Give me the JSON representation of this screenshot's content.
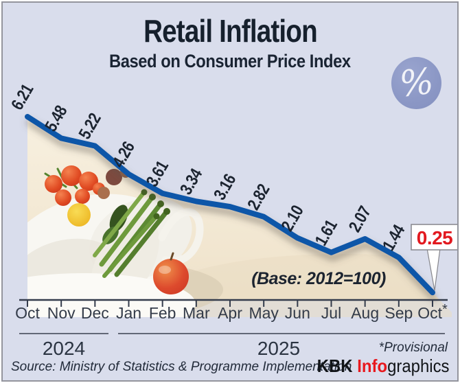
{
  "header": {
    "title": "Retail Inflation",
    "subtitle": "Based on Consumer Price Index"
  },
  "badge": {
    "symbol": "%"
  },
  "chart_data": {
    "type": "line",
    "title": "Retail Inflation",
    "subtitle": "Based on Consumer Price Index",
    "unit": "%",
    "categories": [
      "Oct",
      "Nov",
      "Dec",
      "Jan",
      "Feb",
      "Mar",
      "Apr",
      "May",
      "Jun",
      "Jul",
      "Aug",
      "Sep",
      "Oct*"
    ],
    "values": [
      6.21,
      5.48,
      5.22,
      4.26,
      3.61,
      3.34,
      3.16,
      2.82,
      2.1,
      1.61,
      2.07,
      1.44,
      0.25
    ],
    "value_labels": [
      "6.21",
      "5.48",
      "5.22",
      "4.26",
      "3.61",
      "3.34",
      "3.16",
      "2.82",
      "2.10",
      "1.61",
      "2.07",
      "1.44",
      "0.25"
    ],
    "year_groups": [
      {
        "label": "2024",
        "from": "Oct",
        "to": "Dec"
      },
      {
        "label": "2025",
        "from": "Jan",
        "to": "Oct*"
      }
    ],
    "base_note": "(Base: 2012=100)",
    "provisional_note": "*Provisional",
    "highlight": {
      "index": 12,
      "label": "0.25",
      "color": "#e2191f"
    },
    "line_color": "#1157a8",
    "label_color": "#1c2430",
    "axis_color": "#333b49",
    "ylim": [
      0,
      6.5
    ],
    "grid": false,
    "legend": false
  },
  "footer": {
    "source": "Source: Ministry of Statistics & Programme Implementation",
    "credit": {
      "kbk": "KBK ",
      "info": "Info",
      "graphics": "graphics"
    }
  }
}
